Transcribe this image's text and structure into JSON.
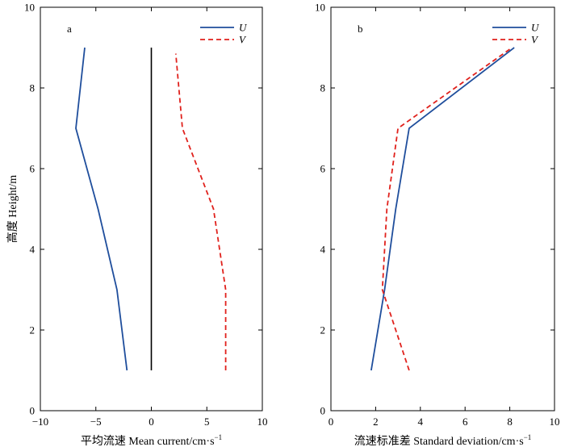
{
  "figure": {
    "ylabel": "高度 Height/m",
    "colors": {
      "U": "#1f4e9c",
      "V": "#e0211c",
      "zero_line": "#000000"
    }
  },
  "chart_data": [
    {
      "type": "line",
      "panel_label": "a",
      "xlabel": "平均流速 Mean current/cm·s",
      "xlabel_exponent": "−1",
      "ylabel": "高度 Height/m",
      "xlim": [
        -10,
        10
      ],
      "ylim": [
        0,
        10
      ],
      "xticks": [
        "−10",
        "−5",
        "0",
        "5",
        "10"
      ],
      "yticks": [
        "0",
        "2",
        "4",
        "6",
        "8",
        "10"
      ],
      "grid": false,
      "legend": "top-right",
      "series": [
        {
          "name": "U",
          "style": "solid",
          "points": [
            [
              -2.2,
              1
            ],
            [
              -3.1,
              3
            ],
            [
              -4.8,
              5
            ],
            [
              -6.8,
              7
            ],
            [
              -6.0,
              9
            ]
          ]
        },
        {
          "name": "V",
          "style": "dashed",
          "points": [
            [
              6.7,
              1
            ],
            [
              6.7,
              3
            ],
            [
              5.6,
              5
            ],
            [
              2.8,
              7
            ],
            [
              2.2,
              8.85
            ]
          ]
        }
      ],
      "reference_line": {
        "x": 0,
        "y": [
          1,
          9
        ]
      }
    },
    {
      "type": "line",
      "panel_label": "b",
      "xlabel": "流速标准差 Standard deviation/cm·s",
      "xlabel_exponent": "−1",
      "xlim": [
        0,
        10
      ],
      "ylim": [
        0,
        10
      ],
      "xticks": [
        "0",
        "2",
        "4",
        "6",
        "8",
        "10"
      ],
      "yticks": [
        "0",
        "2",
        "4",
        "6",
        "8",
        "10"
      ],
      "grid": false,
      "legend": "top-right",
      "series": [
        {
          "name": "U",
          "style": "solid",
          "points": [
            [
              1.8,
              1
            ],
            [
              2.4,
              3
            ],
            [
              2.9,
              5
            ],
            [
              3.5,
              7
            ],
            [
              8.2,
              9
            ]
          ]
        },
        {
          "name": "V",
          "style": "dashed",
          "points": [
            [
              3.5,
              1
            ],
            [
              2.3,
              3
            ],
            [
              2.5,
              5
            ],
            [
              3.0,
              7
            ],
            [
              8.1,
              9
            ]
          ]
        }
      ]
    }
  ]
}
